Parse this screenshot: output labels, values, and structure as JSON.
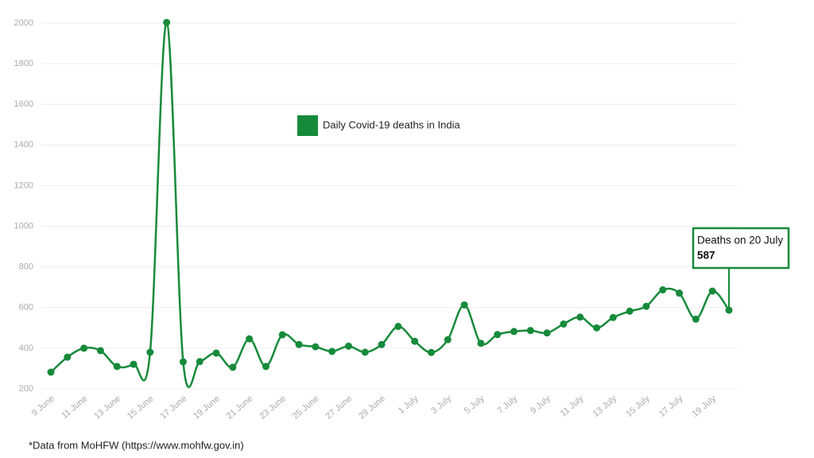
{
  "chart_data": {
    "type": "line",
    "categories": [
      "9 June",
      null,
      "11 June",
      null,
      "13 June",
      null,
      "15 June",
      null,
      "17 June",
      null,
      "19 June",
      null,
      "21 June",
      null,
      "23 June",
      null,
      "25 June",
      null,
      "27 June",
      null,
      "29 June",
      null,
      "1 July",
      null,
      "3 July",
      null,
      "5 July",
      null,
      "7 July",
      null,
      "9 July",
      null,
      "11 July",
      null,
      "13 July",
      null,
      "15 July",
      null,
      "17 July",
      null,
      "19 July",
      null
    ],
    "series": [
      {
        "name": "Daily Covid-19 deaths in India",
        "color": "#168a3a",
        "values": [
          282,
          356,
          400,
          388,
          310,
          321,
          380,
          2003,
          333,
          334,
          376,
          306,
          446,
          310,
          466,
          418,
          407,
          384,
          410,
          380,
          418,
          507,
          434,
          379,
          442,
          613,
          424,
          467,
          482,
          487,
          475,
          519,
          553,
          500,
          551,
          582,
          606,
          687,
          671,
          543,
          681,
          587
        ]
      }
    ],
    "ylim": [
      200,
      2000
    ],
    "yticks": [
      200,
      400,
      600,
      800,
      1000,
      1200,
      1400,
      1600,
      1800,
      2000
    ],
    "grid": true,
    "annotation": "Deaths on 20 July",
    "footnote": "*Data from MoHFW (https://www.mohfw.gov.in)"
  }
}
